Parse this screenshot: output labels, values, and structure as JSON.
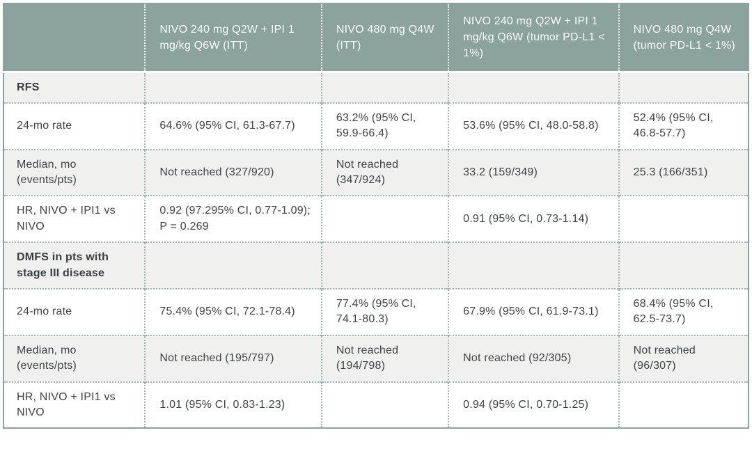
{
  "colors": {
    "header_bg": "#8BA29E",
    "frame_border": "#8BA29E",
    "alt_row_bg": "#F0F0EE",
    "row_bg": "#FFFFFF",
    "dotted_divider": "#A2B4B0",
    "header_text": "#FAFCFB",
    "body_text": "#3E4347"
  },
  "table": {
    "columns": [
      {
        "label": ""
      },
      {
        "label": "NIVO 240 mg Q2W + IPI 1 mg/kg Q6W (ITT)"
      },
      {
        "label": "NIVO 480 mg Q4W (ITT)"
      },
      {
        "label": "NIVO 240 mg Q2W + IPI 1 mg/kg Q6W (tumor PD-L1 < 1%)"
      },
      {
        "label": "NIVO 480 mg Q4W (tumor PD-L1 < 1%)"
      }
    ],
    "rows": [
      {
        "type": "section",
        "label": "RFS",
        "cells": [
          "",
          "",
          "",
          ""
        ]
      },
      {
        "type": "data",
        "label": "24-mo rate",
        "cells": [
          "64.6% (95% CI, 61.3-67.7)",
          "63.2% (95% CI, 59.9-66.4)",
          "53.6% (95% CI, 48.0-58.8)",
          "52.4% (95% CI, 46.8-57.7)"
        ]
      },
      {
        "type": "data",
        "label": "Median, mo (events/pts)",
        "cells": [
          "Not reached (327/920)",
          "Not reached (347/924)",
          "33.2 (159/349)",
          "25.3 (166/351)"
        ]
      },
      {
        "type": "data",
        "label": "HR, NIVO + IPI1 vs NIVO",
        "cells": [
          "0.92 (97.295% CI, 0.77-1.09); P = 0.269",
          "",
          "0.91 (95% CI, 0.73-1.14)",
          ""
        ]
      },
      {
        "type": "section",
        "label": "DMFS in pts with stage III disease",
        "cells": [
          "",
          "",
          "",
          ""
        ]
      },
      {
        "type": "data",
        "label": "24-mo rate",
        "cells": [
          "75.4% (95% CI, 72.1-78.4)",
          "77.4% (95% CI, 74.1-80.3)",
          "67.9% (95% CI, 61.9-73.1)",
          "68.4% (95% CI, 62.5-73.7)"
        ]
      },
      {
        "type": "data",
        "label": "Median, mo (events/pts)",
        "cells": [
          "Not reached (195/797)",
          "Not reached (194/798)",
          "Not reached (92/305)",
          "Not reached (96/307)"
        ]
      },
      {
        "type": "data",
        "label": "HR, NIVO + IPI1 vs NIVO",
        "cells": [
          "1.01 (95% CI, 0.83-1.23)",
          "",
          "0.94 (95% CI, 0.70-1.25)",
          ""
        ]
      }
    ]
  }
}
